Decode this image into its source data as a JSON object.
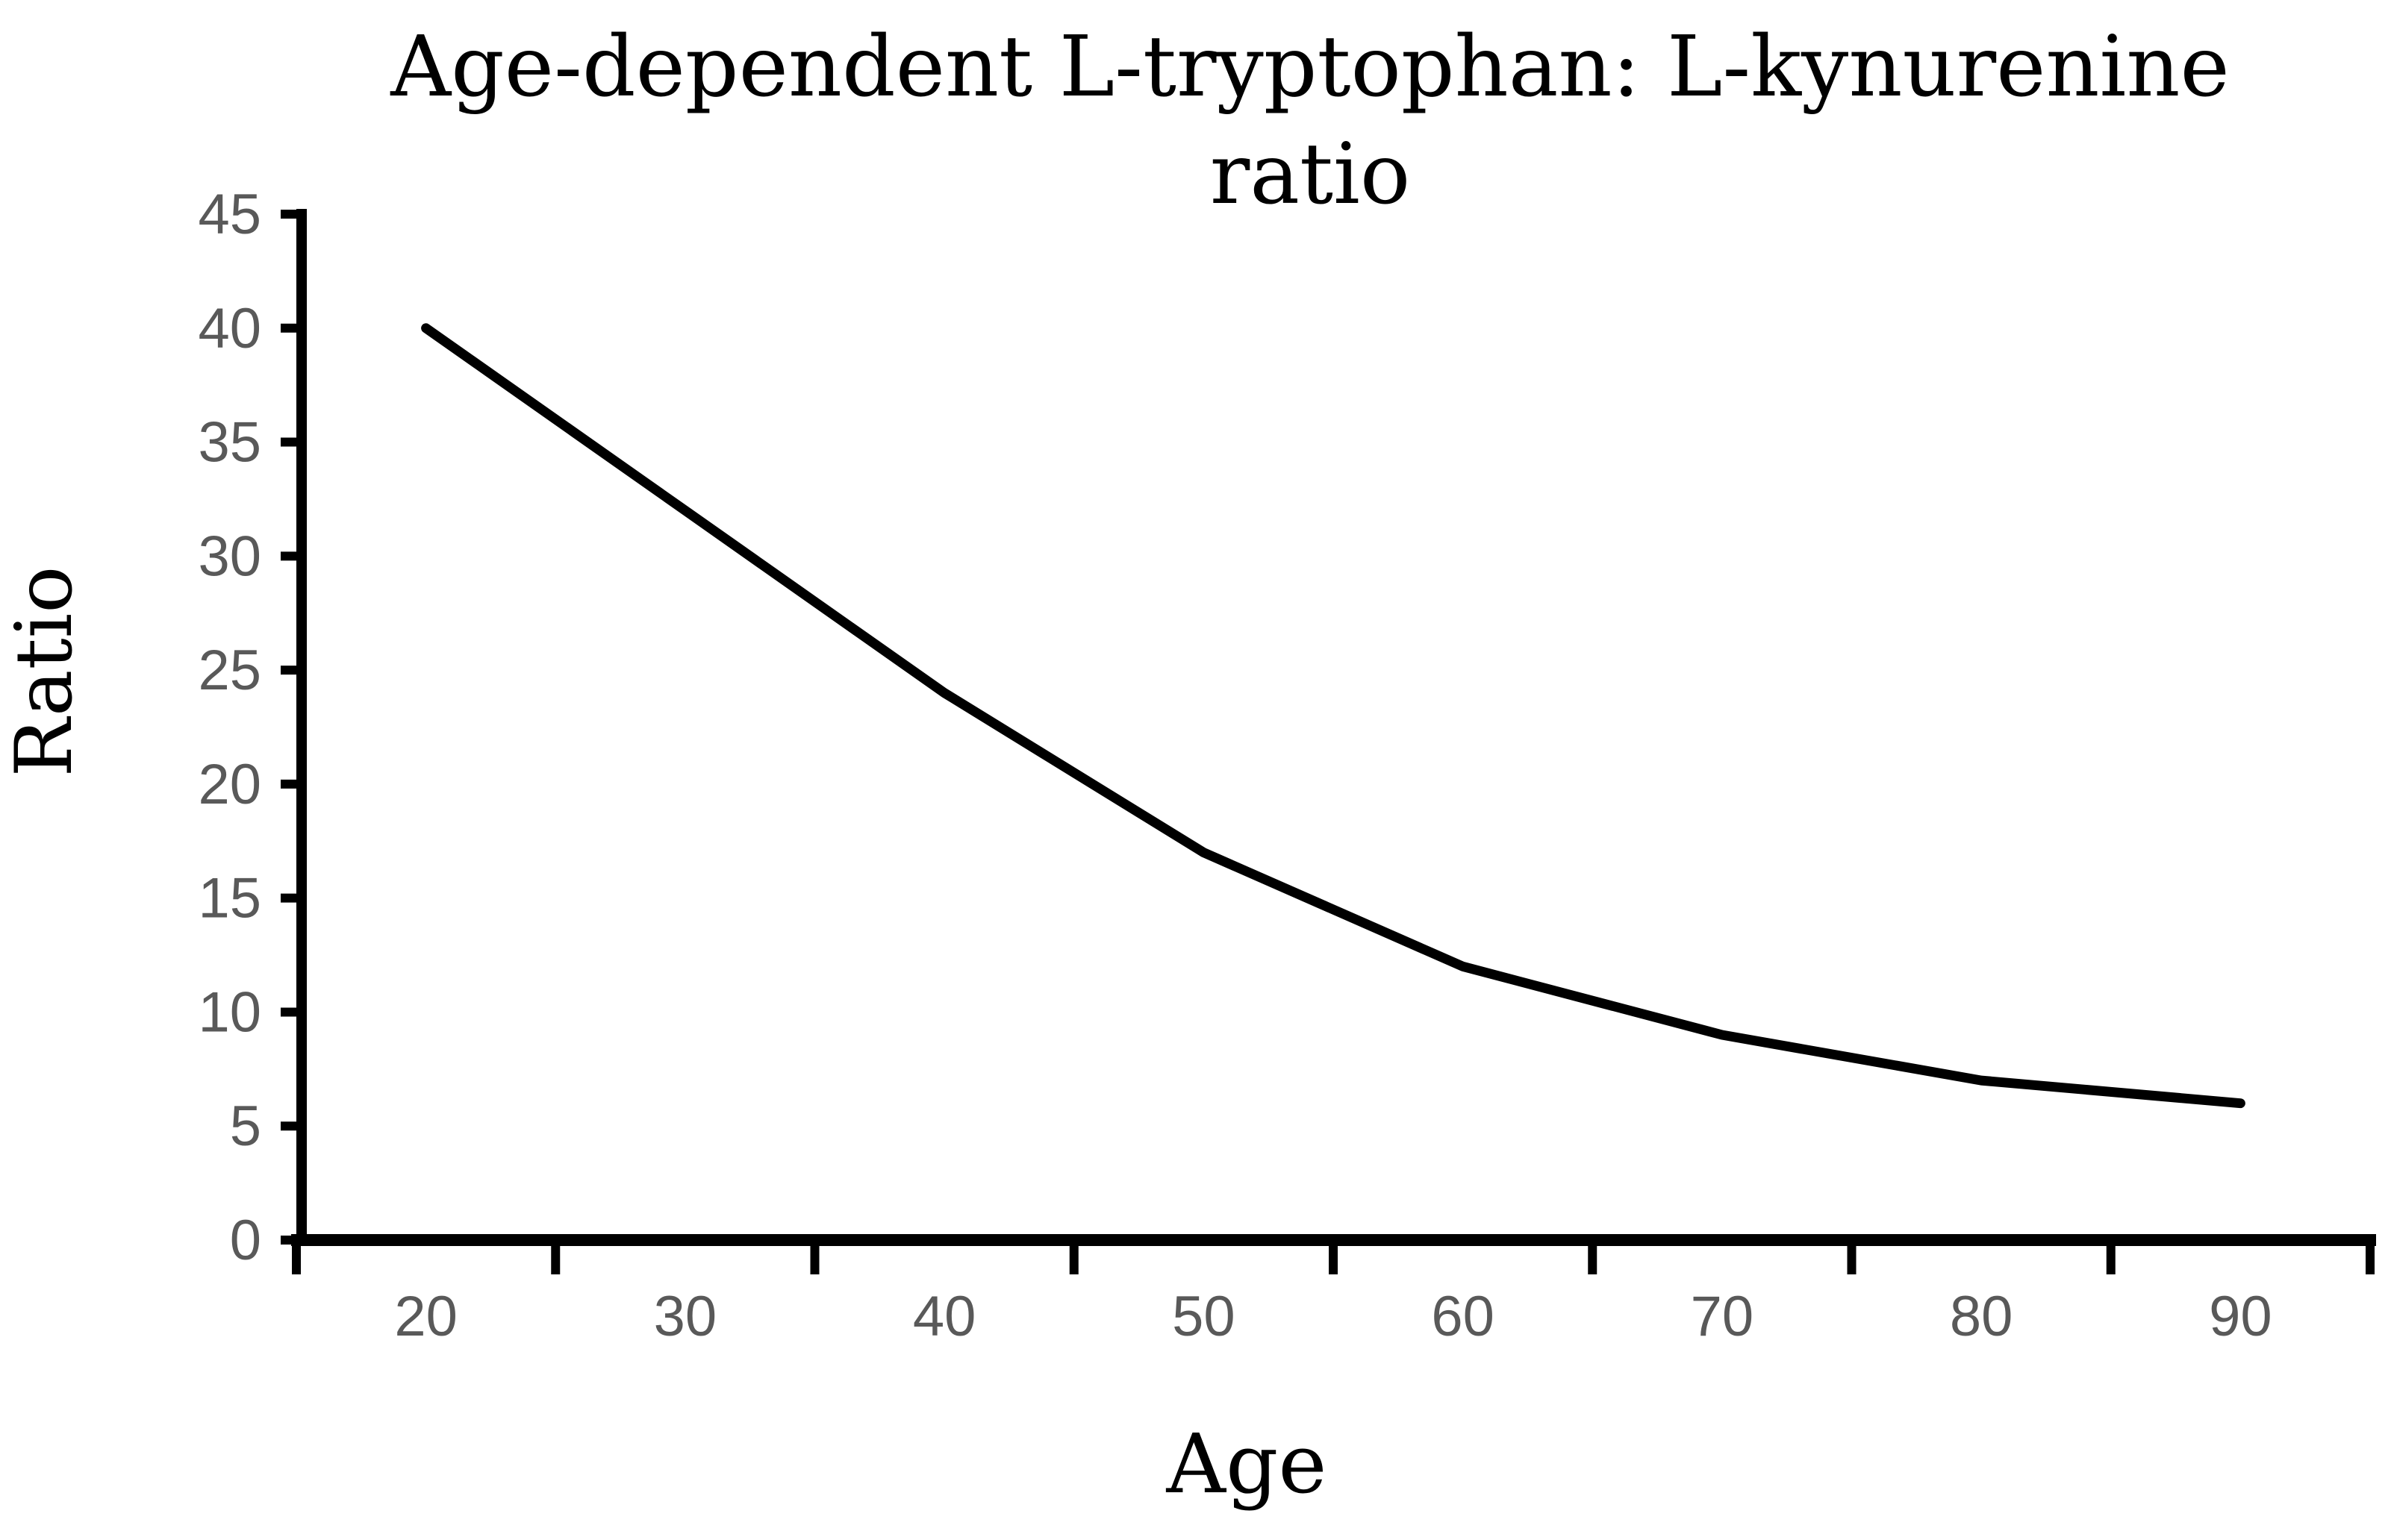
{
  "page": {
    "background": "#ffffff"
  },
  "chart_data": {
    "type": "line",
    "title": "Age-dependent L-tryptophan: L-kynurenine ratio",
    "title_line1": "Age-dependent L-tryptophan: L-kynurenine",
    "title_line2": "ratio",
    "xlabel": "Age",
    "ylabel": "Ratio",
    "categories": [
      "20",
      "30",
      "40",
      "50",
      "60",
      "70",
      "80",
      "90"
    ],
    "values": [
      40,
      32,
      24,
      17,
      12,
      9,
      7,
      6
    ],
    "yticks": [
      0,
      5,
      10,
      15,
      20,
      25,
      30,
      35,
      40,
      45
    ],
    "ylim": [
      0,
      45
    ],
    "grid": false,
    "legend": false,
    "line_color": "#000000",
    "axis_color": "#000000",
    "tick_label_color": "#595959",
    "title_color": "#000000",
    "background": "#ffffff"
  }
}
